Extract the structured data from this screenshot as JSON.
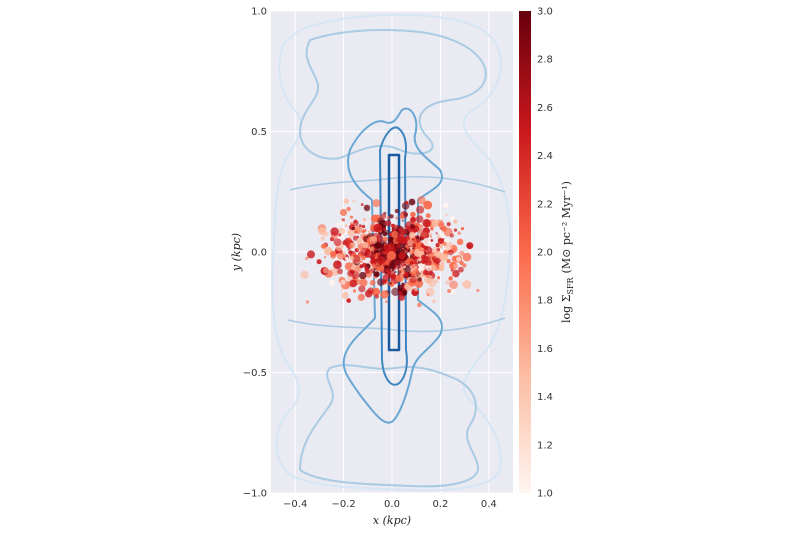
{
  "chart_data": {
    "type": "heatmap",
    "title": "",
    "xlabel": "x (kpc)",
    "ylabel": "y (kpc)",
    "xlim": [
      -0.5,
      0.5
    ],
    "ylim": [
      -1.0,
      1.0
    ],
    "xticks": [
      -0.4,
      -0.2,
      0.0,
      0.2,
      0.4
    ],
    "xtick_labels": [
      "−0.4",
      "−0.2",
      "0.0",
      "0.2",
      "0.4"
    ],
    "yticks": [
      -1.0,
      -0.5,
      0.0,
      0.5,
      1.0
    ],
    "ytick_labels": [
      "−1.0",
      "−0.5",
      "0.0",
      "0.5",
      "1.0"
    ],
    "grid": true,
    "background": "#eaeaf2",
    "colorbar": {
      "label": "log Σ_SFR (M⊙ pc⁻² Myr⁻¹)",
      "label_main": "log Σ",
      "label_sub": "SFR",
      "label_units": "(M⊙ pc⁻² Myr⁻¹)",
      "range": [
        1.0,
        3.0
      ],
      "ticks": [
        1.0,
        1.2,
        1.4,
        1.6,
        1.8,
        2.0,
        2.2,
        2.4,
        2.6,
        2.8,
        3.0
      ],
      "tick_labels": [
        "1.0",
        "1.2",
        "1.4",
        "1.6",
        "1.8",
        "2.0",
        "2.2",
        "2.4",
        "2.6",
        "2.8",
        "3.0"
      ],
      "colormap": "Reds",
      "colors": [
        "#fff5f0",
        "#fcbba1",
        "#fb6a4a",
        "#cb181d",
        "#67000d"
      ]
    },
    "contours": {
      "colormap": "Blues",
      "colors": [
        "#d6e6f4",
        "#a9cbe3",
        "#6aa8d4",
        "#3f86c0",
        "#1a5a9e"
      ],
      "description_level_count": 5
    }
  }
}
